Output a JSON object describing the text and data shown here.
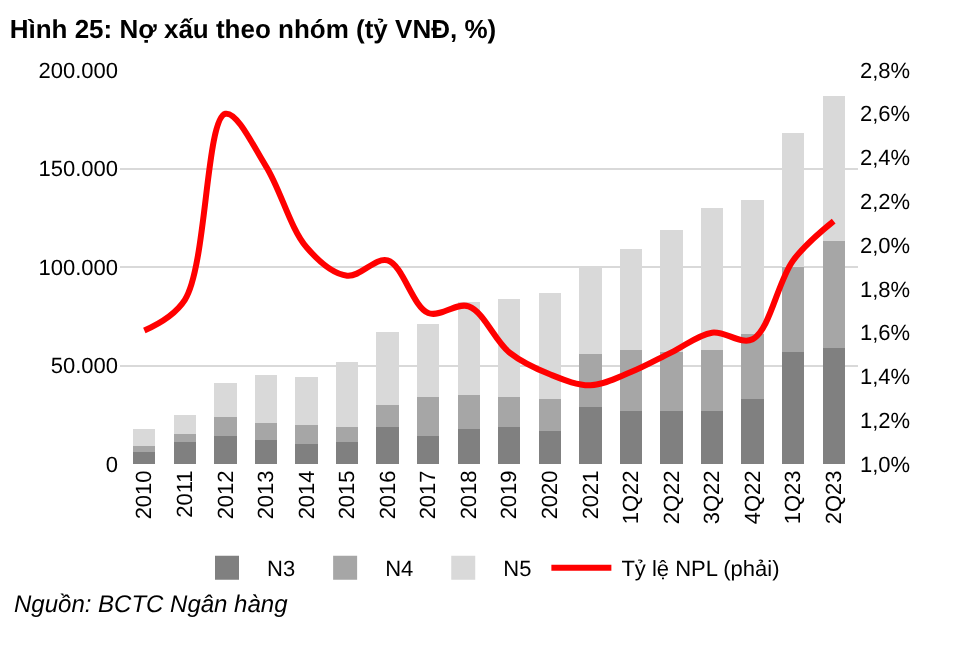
{
  "chart_data": {
    "type": "bar",
    "title": "Hình 25: Nợ xấu theo nhóm (tỷ VNĐ, %)",
    "categories": [
      "2010",
      "2011",
      "2012",
      "2013",
      "2014",
      "2015",
      "2016",
      "2017",
      "2018",
      "2019",
      "2020",
      "2021",
      "1Q22",
      "2Q22",
      "3Q22",
      "4Q22",
      "1Q23",
      "2Q23"
    ],
    "stacked": true,
    "series": [
      {
        "name": "N3",
        "color": "#808080",
        "values": [
          6000,
          11000,
          14000,
          12000,
          10000,
          11000,
          19000,
          14000,
          18000,
          19000,
          17000,
          29000,
          27000,
          27000,
          27000,
          33000,
          57000,
          59000
        ]
      },
      {
        "name": "N4",
        "color": "#a6a6a6",
        "values": [
          3000,
          4000,
          10000,
          9000,
          10000,
          8000,
          11000,
          20000,
          17000,
          15000,
          16000,
          27000,
          31000,
          30000,
          31000,
          33000,
          43000,
          54000
        ]
      },
      {
        "name": "N5",
        "color": "#d9d9d9",
        "values": [
          9000,
          10000,
          17000,
          24000,
          24000,
          33000,
          37000,
          37000,
          47000,
          50000,
          54000,
          44000,
          51000,
          62000,
          72000,
          68000,
          68000,
          74000
        ]
      },
      {
        "name": "Tỷ lệ NPL (phải)",
        "type": "line",
        "axis": "y2",
        "color": "#ff0000",
        "values": [
          1.61,
          1.75,
          2.6,
          2.36,
          1.99,
          1.86,
          1.93,
          1.69,
          1.72,
          1.51,
          1.41,
          1.36,
          1.42,
          1.51,
          1.6,
          1.57,
          1.93,
          2.11
        ]
      }
    ],
    "ylim": [
      0,
      200000
    ],
    "yticks": [
      0,
      {
        "value": 50000,
        "label": "50.000"
      },
      {
        "value": 100000,
        "label": "100.000"
      },
      {
        "value": 150000,
        "label": "150.000"
      },
      {
        "value": 200000,
        "label": "200.000"
      }
    ],
    "y2lim": [
      1.0,
      2.8
    ],
    "y2ticks": [
      {
        "value": 1.0,
        "label": "1,0%"
      },
      {
        "value": 1.2,
        "label": "1,2%"
      },
      {
        "value": 1.4,
        "label": "1,4%"
      },
      {
        "value": 1.6,
        "label": "1,6%"
      },
      {
        "value": 1.8,
        "label": "1,8%"
      },
      {
        "value": 2.0,
        "label": "2,0%"
      },
      {
        "value": 2.2,
        "label": "2,2%"
      },
      {
        "value": 2.4,
        "label": "2,4%"
      },
      {
        "value": 2.6,
        "label": "2,6%"
      },
      {
        "value": 2.8,
        "label": "2,8%"
      }
    ],
    "grid": "y",
    "legend": "bottom",
    "annotations": [
      "Nguồn: BCTC Ngân hàng"
    ]
  }
}
